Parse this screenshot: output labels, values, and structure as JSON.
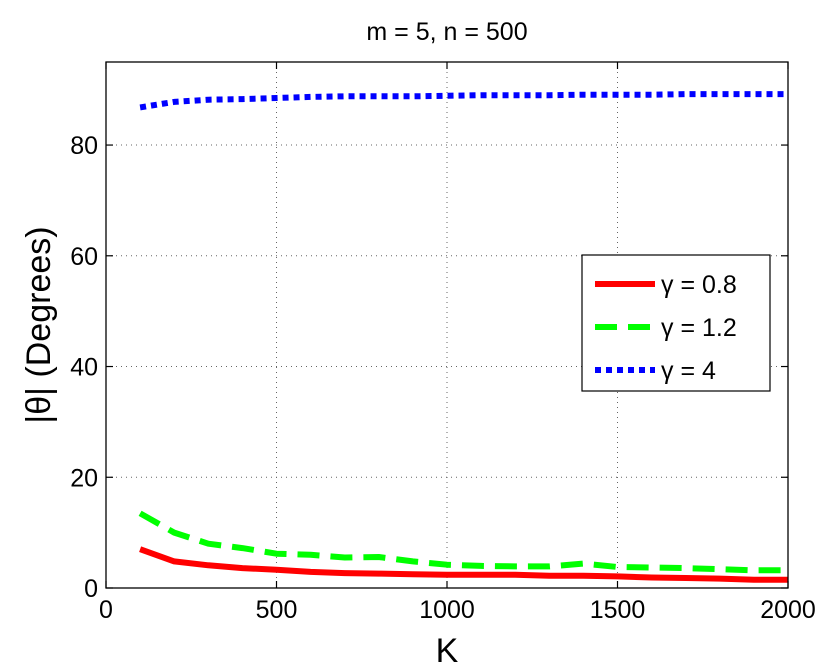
{
  "chart_data": {
    "type": "line",
    "title": "m = 5, n = 500",
    "xlabel": "K",
    "ylabel": "|θ| (Degrees)",
    "xlim": [
      0,
      2000
    ],
    "ylim": [
      0,
      95
    ],
    "xticks": [
      0,
      500,
      1000,
      1500,
      2000
    ],
    "yticks": [
      0,
      20,
      40,
      60,
      80
    ],
    "grid": true,
    "legend_position": "right",
    "series": [
      {
        "name": "γ = 0.8",
        "color": "#ff0000",
        "style": "solid",
        "x": [
          100,
          200,
          300,
          400,
          500,
          600,
          700,
          800,
          900,
          1000,
          1100,
          1200,
          1300,
          1400,
          1500,
          1600,
          1700,
          1800,
          1900,
          2000
        ],
        "y": [
          7.0,
          4.8,
          4.1,
          3.6,
          3.3,
          2.9,
          2.7,
          2.6,
          2.5,
          2.4,
          2.4,
          2.4,
          2.2,
          2.2,
          2.1,
          1.9,
          1.8,
          1.7,
          1.5,
          1.5
        ]
      },
      {
        "name": "γ = 1.2",
        "color": "#00ff00",
        "style": "dashed",
        "x": [
          100,
          200,
          300,
          400,
          500,
          600,
          700,
          800,
          900,
          1000,
          1100,
          1200,
          1300,
          1400,
          1500,
          1600,
          1700,
          1800,
          1900,
          2000
        ],
        "y": [
          13.5,
          10.0,
          8.0,
          7.2,
          6.2,
          6.0,
          5.5,
          5.6,
          4.8,
          4.2,
          4.0,
          3.9,
          3.9,
          4.4,
          3.8,
          3.7,
          3.6,
          3.4,
          3.2,
          3.2
        ]
      },
      {
        "name": "γ = 4",
        "color": "#0000ff",
        "style": "dotted",
        "x": [
          100,
          200,
          300,
          400,
          500,
          600,
          700,
          800,
          900,
          1000,
          1100,
          1200,
          1300,
          1400,
          1500,
          1600,
          1700,
          1800,
          1900,
          2000
        ],
        "y": [
          86.8,
          87.8,
          88.2,
          88.3,
          88.5,
          88.7,
          88.8,
          88.8,
          88.8,
          88.9,
          89.0,
          89.0,
          89.0,
          89.1,
          89.1,
          89.1,
          89.2,
          89.2,
          89.2,
          89.2
        ]
      }
    ]
  }
}
